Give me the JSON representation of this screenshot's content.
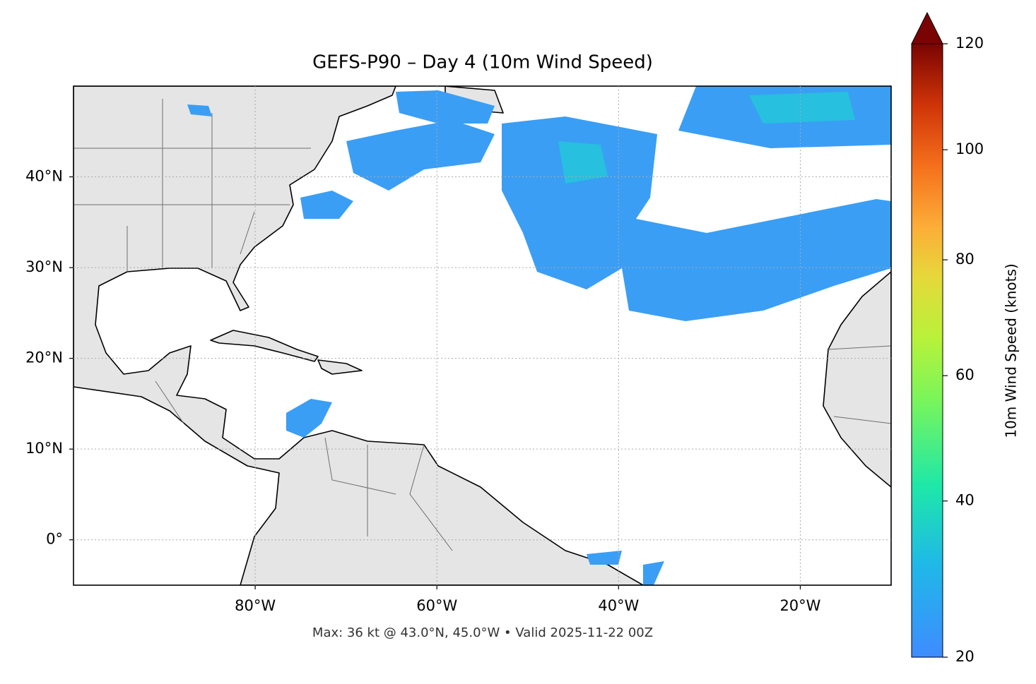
{
  "chart_data": {
    "type": "map",
    "title": "GEFS-P90 – Day 4 (10m Wind Speed)",
    "caption": "Max: 36 kt @ 43.0°N, 45.0°W • Valid 2025-11-22 00Z",
    "xlim": [
      -100,
      -10
    ],
    "ylim": [
      -5,
      50
    ],
    "xticks": [
      {
        "value": -80,
        "label": "80°W"
      },
      {
        "value": -60,
        "label": "60°W"
      },
      {
        "value": -40,
        "label": "40°W"
      },
      {
        "value": -20,
        "label": "20°W"
      }
    ],
    "yticks": [
      {
        "value": 0,
        "label": "0°"
      },
      {
        "value": 10,
        "label": "10°N"
      },
      {
        "value": 20,
        "label": "20°N"
      },
      {
        "value": 30,
        "label": "30°N"
      },
      {
        "value": 40,
        "label": "40°N"
      }
    ],
    "grid": true,
    "colorbar": {
      "label": "10m Wind Speed (knots)",
      "lim": [
        20,
        120
      ],
      "ticks": [
        20,
        40,
        60,
        80,
        100,
        120
      ],
      "gamma": 0.85
    }
  }
}
